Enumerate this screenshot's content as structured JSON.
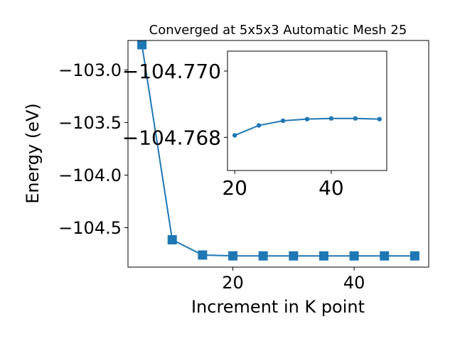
{
  "chart_data": [
    {
      "type": "line",
      "title": "Converged at 5x5x3 Automatic Mesh 25",
      "xlabel": "Increment in K point",
      "ylabel": "Energy (eV)",
      "marker": "square",
      "color": "#1f77b4",
      "grid": false,
      "xlim": [
        2.7,
        52.3
      ],
      "ylim": [
        -104.875,
        -102.72
      ],
      "xticks": [
        20,
        40
      ],
      "xtick_labels": [
        "20",
        "40"
      ],
      "yticks": [
        -103.0,
        -103.5,
        -104.0,
        -104.5
      ],
      "ytick_labels": [
        "−103.0",
        "−103.5",
        "−104.0",
        "−104.5"
      ],
      "x": [
        5,
        10,
        15,
        20,
        25,
        30,
        35,
        40,
        45,
        50
      ],
      "y": [
        -102.76,
        -104.615,
        -104.76,
        -104.768,
        -104.7683,
        -104.7684,
        -104.7685,
        -104.7685,
        -104.7685,
        -104.7685
      ]
    },
    {
      "type": "line",
      "title": "",
      "xlabel": "",
      "ylabel": "",
      "marker": "circle",
      "color": "#1f77b4",
      "grid": false,
      "xlim": [
        18.5,
        51.5
      ],
      "ylim": [
        -104.767,
        -104.7706
      ],
      "xticks": [
        20,
        40
      ],
      "xtick_labels": [
        "20",
        "40"
      ],
      "yticks": [
        -104.77,
        -104.768
      ],
      "ytick_labels": [
        "−104.770",
        "−104.768"
      ],
      "x": [
        20,
        25,
        30,
        35,
        40,
        45,
        50
      ],
      "y": [
        -104.76806,
        -104.76836,
        -104.7685,
        -104.76855,
        -104.76857,
        -104.76857,
        -104.76855
      ]
    }
  ]
}
